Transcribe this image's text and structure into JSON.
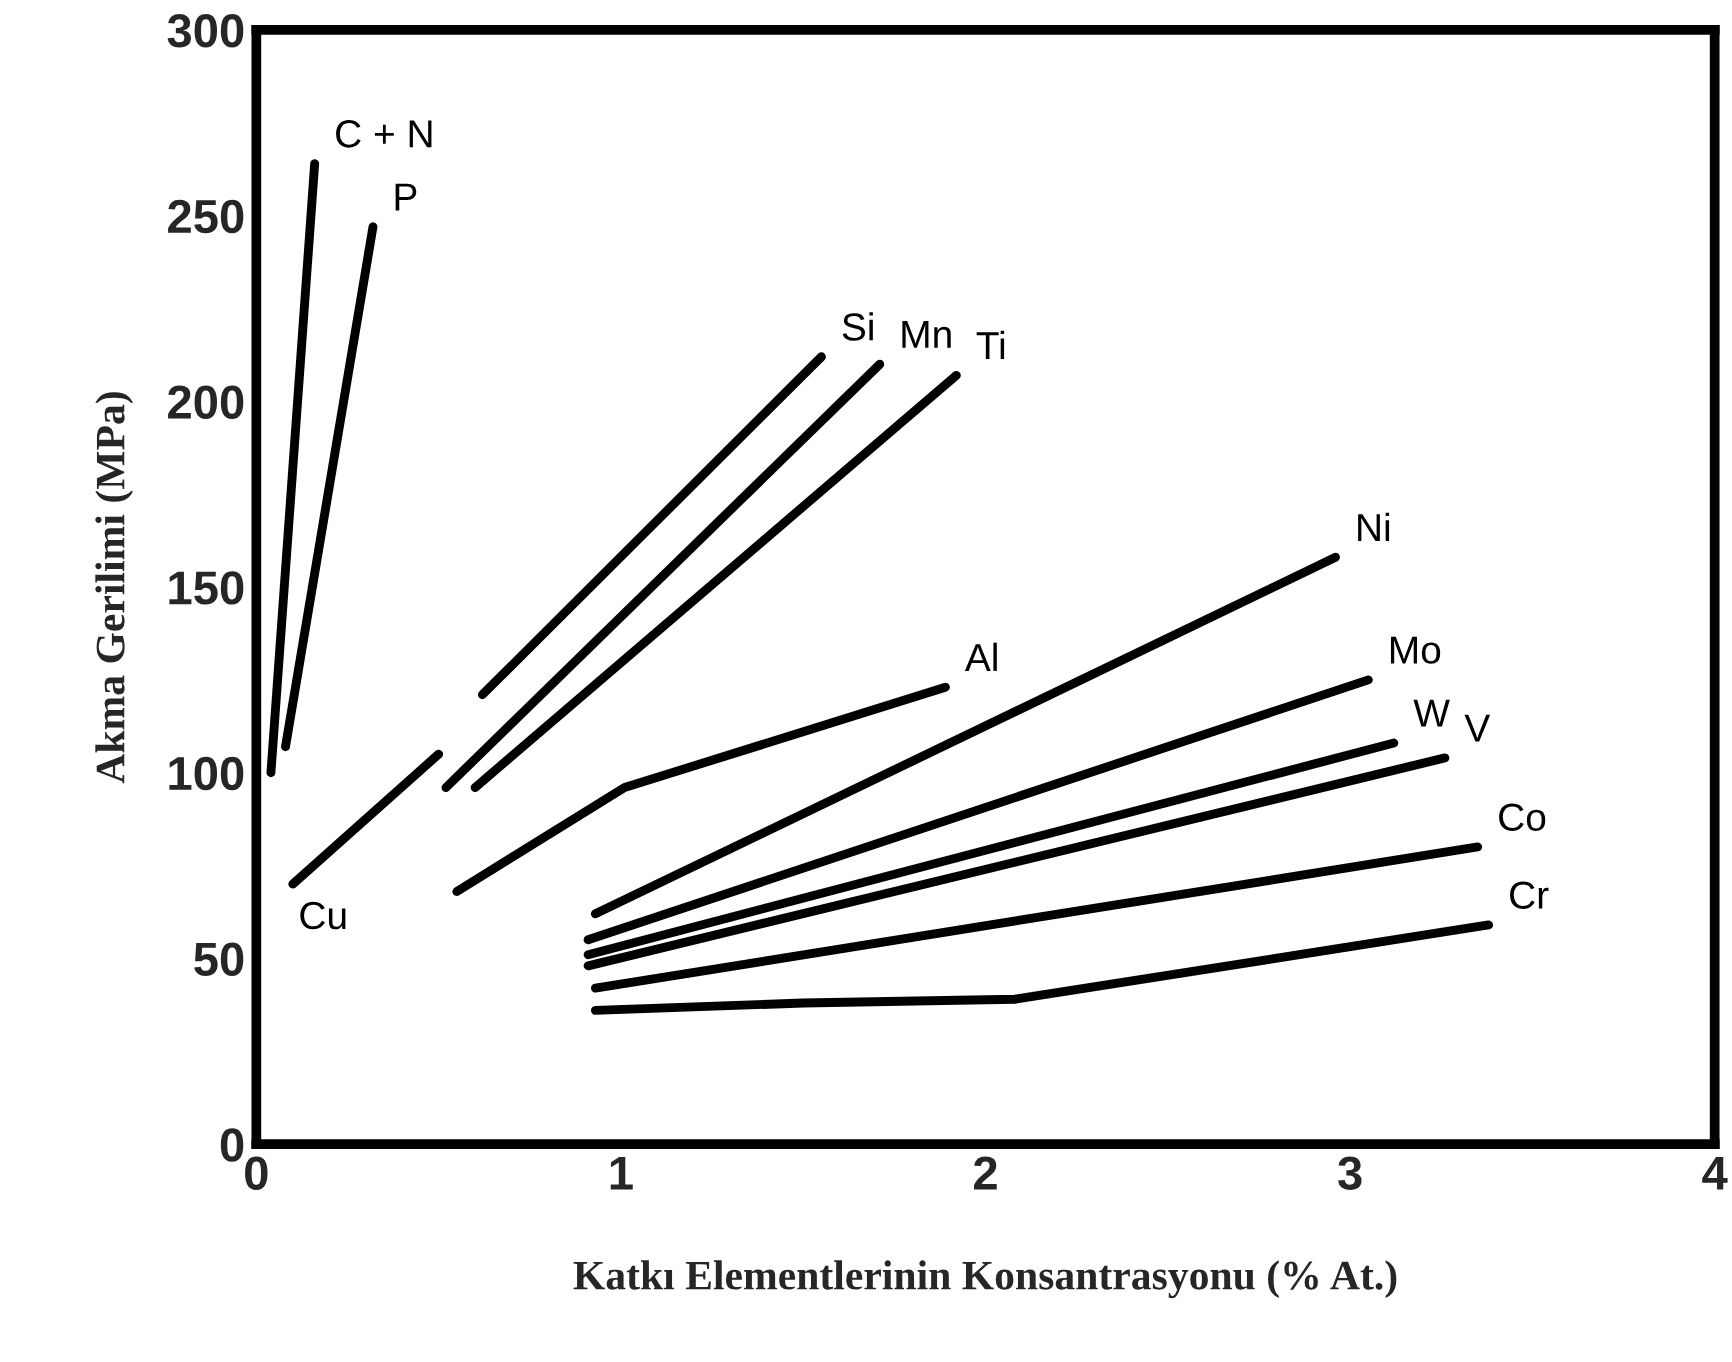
{
  "chart_data": {
    "type": "line",
    "xlabel": "Katkı Elementlerinin Konsantrasyonu (% At.)",
    "ylabel": "Akma Gerilimi (MPa)",
    "xlim": [
      0,
      4
    ],
    "ylim": [
      0,
      300
    ],
    "xticks": [
      0,
      1,
      2,
      3,
      4
    ],
    "yticks": [
      0,
      50,
      100,
      150,
      200,
      250,
      300
    ],
    "grid": false,
    "legend": false,
    "marker": "none",
    "line_style": "solid",
    "series": [
      {
        "name": "C + N",
        "color": "#000000",
        "x": [
          0.04,
          0.16
        ],
        "values": [
          100,
          264
        ]
      },
      {
        "name": "P",
        "color": "#000000",
        "x": [
          0.08,
          0.32
        ],
        "values": [
          107,
          247
        ]
      },
      {
        "name": "Si",
        "color": "#000000",
        "x": [
          0.62,
          1.55
        ],
        "values": [
          121,
          212
        ]
      },
      {
        "name": "Mn",
        "color": "#000000",
        "x": [
          0.52,
          1.71
        ],
        "values": [
          96,
          210
        ]
      },
      {
        "name": "Ti",
        "color": "#000000",
        "x": [
          0.6,
          1.92
        ],
        "values": [
          96,
          207
        ]
      },
      {
        "name": "Cu",
        "color": "#000000",
        "x": [
          0.5,
          0.1
        ],
        "values": [
          105,
          70
        ]
      },
      {
        "name": "Al",
        "color": "#000000",
        "x": [
          0.55,
          1.01,
          1.89
        ],
        "values": [
          68,
          96,
          123
        ]
      },
      {
        "name": "Ni",
        "color": "#000000",
        "x": [
          0.93,
          2.96
        ],
        "values": [
          62,
          158
        ]
      },
      {
        "name": "Mo",
        "color": "#000000",
        "x": [
          0.91,
          3.05
        ],
        "values": [
          55,
          125
        ]
      },
      {
        "name": "W",
        "color": "#000000",
        "x": [
          0.91,
          3.12
        ],
        "values": [
          51,
          108
        ]
      },
      {
        "name": "V",
        "color": "#000000",
        "x": [
          0.91,
          3.26
        ],
        "values": [
          48,
          104
        ]
      },
      {
        "name": "Co",
        "color": "#000000",
        "x": [
          0.93,
          3.35
        ],
        "values": [
          42,
          80
        ]
      },
      {
        "name": "Cr",
        "color": "#000000",
        "x": [
          0.93,
          1.5,
          2.08,
          3.38
        ],
        "values": [
          36,
          38,
          39,
          59
        ]
      }
    ]
  }
}
